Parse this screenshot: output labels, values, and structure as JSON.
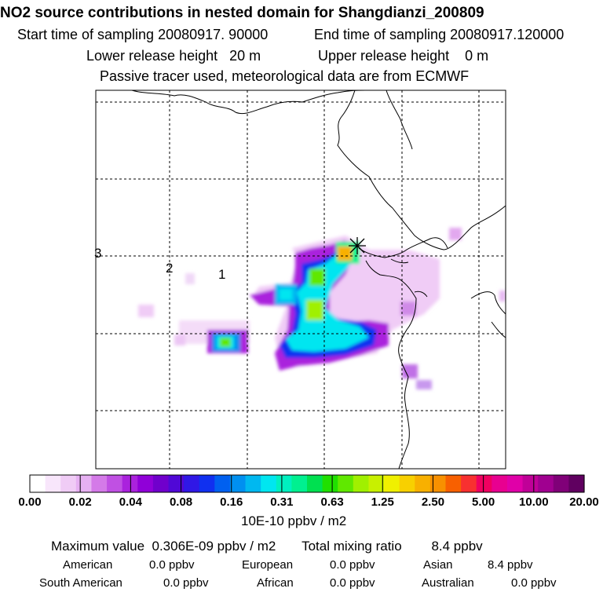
{
  "title": "NO2 source contributions in nested domain for Shangdianzi_200809",
  "sampling": {
    "start_label": "Start time of sampling",
    "start_value": "20080917. 90000",
    "end_label": "End time of sampling",
    "end_value": "20080917.120000"
  },
  "release": {
    "lower_label": "Lower release height",
    "lower_value": "20 m",
    "upper_label": "Upper release height",
    "upper_value": "0 m"
  },
  "note": "Passive tracer used, meteorological data are from ECMWF",
  "map_labels": [
    "3",
    "2",
    "1"
  ],
  "colorbar": {
    "ticks": [
      "0.00",
      "0.02",
      "0.04",
      "0.08",
      "0.16",
      "0.31",
      "0.63",
      "1.25",
      "2.50",
      "5.00",
      "10.00",
      "20.00"
    ],
    "colors": [
      "#ffffff",
      "#f8e6fb",
      "#f0ccf6",
      "#e6b0f2",
      "#d47ae8",
      "#c050e3",
      "#aa22dd",
      "#9000d8",
      "#7000cc",
      "#5008d6",
      "#3018e6",
      "#1030f0",
      "#0060f0",
      "#0090f0",
      "#00b8f0",
      "#00e6f0",
      "#00f0c0",
      "#00f090",
      "#00e050",
      "#20e000",
      "#60e800",
      "#a0f000",
      "#c8f000",
      "#f0f000",
      "#f8d000",
      "#f8b000",
      "#f89000",
      "#f86000",
      "#f83030",
      "#f00060",
      "#e80090",
      "#e000a8",
      "#c00098",
      "#a00090",
      "#800078",
      "#600060"
    ],
    "unit": "10E-10 ppbv / m2"
  },
  "summary": {
    "max_label": "Maximum value",
    "max_value": "0.306E-09 ppbv / m2",
    "total_label": "Total mixing ratio",
    "total_value": "8.4 ppbv"
  },
  "regions": [
    {
      "name": "American",
      "value": "0.0 ppbv"
    },
    {
      "name": "European",
      "value": "0.0 ppbv"
    },
    {
      "name": "Asian",
      "value": "8.4 ppbv"
    },
    {
      "name": "South American",
      "value": "0.0 ppbv"
    },
    {
      "name": "African",
      "value": "0.0 ppbv"
    },
    {
      "name": "Australian",
      "value": "0.0 ppbv"
    }
  ]
}
